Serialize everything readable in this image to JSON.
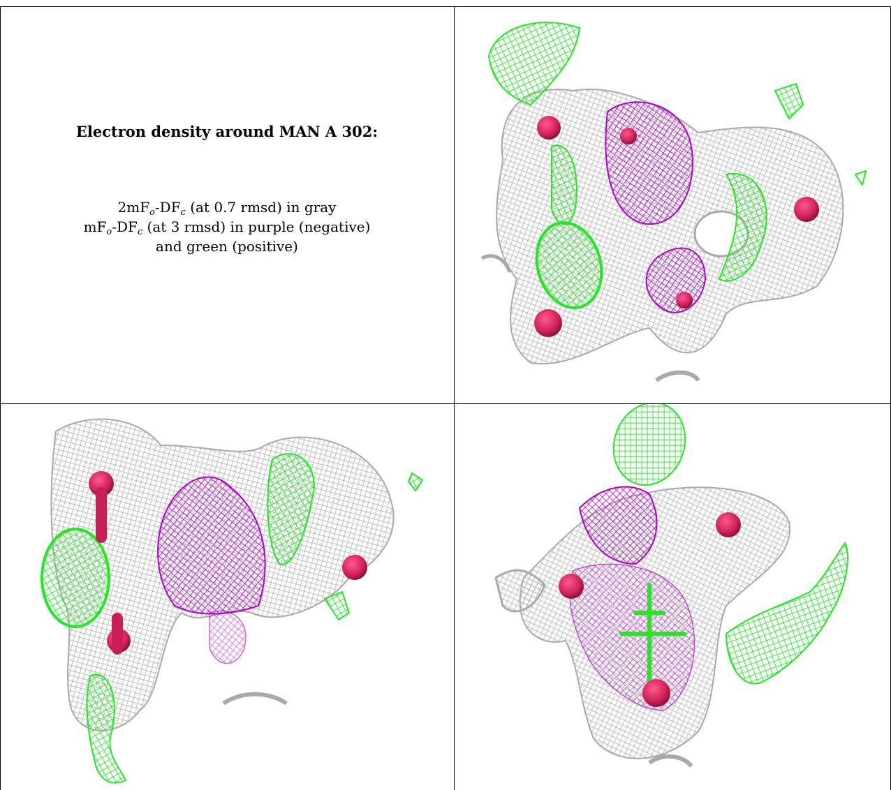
{
  "caption": {
    "title": "Electron density around MAN A 302:",
    "line1": {
      "a": "2mF",
      "b": "o",
      "c": "-DF",
      "d": "c",
      "e": " (at 0.7 rmsd) in gray"
    },
    "line2": {
      "a": "mF",
      "b": "o",
      "c": "-DF",
      "d": "c",
      "e": " (at 3 rmsd) in purple (negative)"
    },
    "line3": "and green (positive)"
  },
  "colors": {
    "gray_mesh": "#a9a9a9",
    "purple_mesh": "#b000c8",
    "green_mesh": "#22e822",
    "oxygen_sphere": "#d0205a",
    "border": "#000000"
  },
  "panels": [
    {
      "name": "density-view-1",
      "view": "top"
    },
    {
      "name": "density-view-2",
      "view": "side"
    },
    {
      "name": "density-view-3",
      "view": "front"
    }
  ]
}
